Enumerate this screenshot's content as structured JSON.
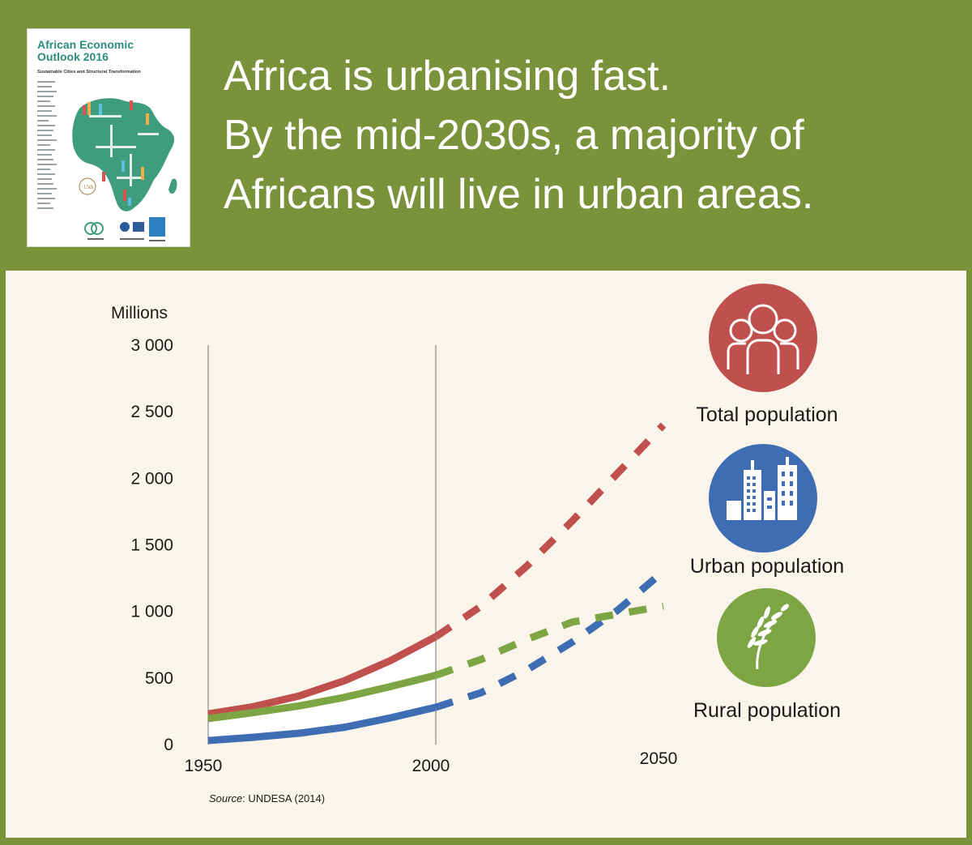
{
  "cover": {
    "title_line1": "African Economic",
    "title_line2": "Outlook 2016",
    "subtitle": "Sustainable Cities and Structural Transformation"
  },
  "headline": {
    "line1": "Africa is urbanising fast.",
    "line2": "By the mid-2030s, a majority of",
    "line3": "Africans will live in urban areas."
  },
  "legend": {
    "total": "Total population",
    "urban": "Urban population",
    "rural": "Rural population"
  },
  "source": {
    "prefix": "Source",
    "text": ": UNDESA (2014)"
  },
  "colors": {
    "header_bg": "#7a933b",
    "panel_bg": "#faf5ea",
    "total": "#c0504d",
    "urban": "#3f6db3",
    "rural": "#7ea544"
  },
  "chart_data": {
    "type": "line",
    "ylabel": "Millions",
    "yticks": [
      0,
      500,
      1000,
      1500,
      2000,
      2500,
      3000
    ],
    "ytick_labels": [
      "0",
      "500",
      "1 000",
      "1 500",
      "2 000",
      "2 500",
      "3 000"
    ],
    "xticks": [
      1950,
      2000,
      2050
    ],
    "xtick_labels": [
      "1950",
      "2000",
      "2050"
    ],
    "xlim": [
      1950,
      2050
    ],
    "ylim": [
      0,
      3000
    ],
    "projection_start": 2000,
    "series": [
      {
        "name": "Total population",
        "color": "#c0504d",
        "x": [
          1950,
          1960,
          1970,
          1980,
          1990,
          2000,
          2010,
          2020,
          2030,
          2040,
          2050
        ],
        "y": [
          230,
          285,
          365,
          480,
          630,
          810,
          1040,
          1340,
          1680,
          2040,
          2400
        ]
      },
      {
        "name": "Urban population",
        "color": "#3f6db3",
        "x": [
          1950,
          1960,
          1970,
          1980,
          1990,
          2000,
          2010,
          2020,
          2030,
          2040,
          2050
        ],
        "y": [
          30,
          55,
          85,
          130,
          200,
          280,
          390,
          560,
          770,
          1010,
          1300
        ]
      },
      {
        "name": "Rural population",
        "color": "#7ea544",
        "x": [
          1950,
          1960,
          1970,
          1980,
          1990,
          2000,
          2010,
          2020,
          2030,
          2040,
          2050
        ],
        "y": [
          195,
          240,
          290,
          355,
          435,
          520,
          640,
          790,
          920,
          980,
          1040
        ]
      }
    ]
  }
}
